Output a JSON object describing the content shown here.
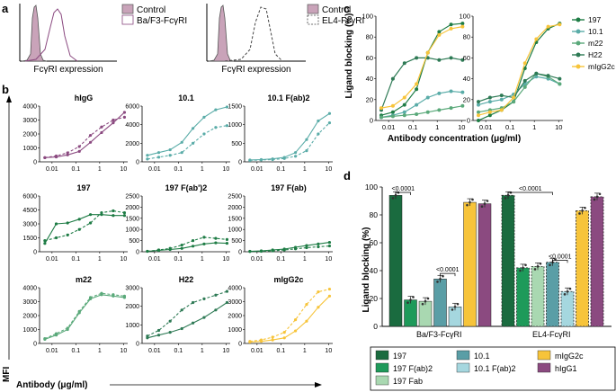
{
  "colors": {
    "hIgG": "#8b4a80",
    "c101": "#5aaca8",
    "c197": "#1e7c45",
    "m22": "#5aa97a",
    "H22": "#2e7a55",
    "mIgG2c": "#f7c43a",
    "control_fill": "#c9a3b9",
    "d_197": "#1a6b3f",
    "d_197_fab2": "#1e9a5a",
    "d_197_fab": "#a9d8b1",
    "d_101": "#5a9ea6",
    "d_101_fab2": "#a5d7df",
    "d_mIgG2c": "#f7c43a",
    "d_hIgG1": "#8b4a80"
  },
  "panel_a": {
    "label": "a",
    "left": {
      "legend": [
        "Control",
        "Ba/F3-FcγRI"
      ],
      "xlabel": "FcγRI expression"
    },
    "right": {
      "legend": [
        "Control",
        "EL4-FcγRI"
      ],
      "xlabel": "FcγRI expression"
    }
  },
  "panel_b": {
    "label": "b",
    "ylabel": "MFI",
    "xlabel": "Antibody (μg/ml)",
    "yticks_top": [
      "0",
      "1000",
      "2000",
      "3000",
      "4000"
    ],
    "xticks": [
      "0.01",
      "0.1",
      "1",
      "10"
    ],
    "x": [
      0.005,
      0.015,
      0.045,
      0.14,
      0.41,
      1.2,
      3.7,
      11
    ],
    "chart_data": [
      {
        "type": "line",
        "title": "hIgG",
        "color_key": "hIgG",
        "ymax": 4000,
        "yticks": [
          "0",
          "1000",
          "2000",
          "3000",
          "4000"
        ],
        "series": [
          {
            "name": "Ba/F3-FcγRI",
            "style": "solid",
            "values": [
              300,
              350,
              500,
              750,
              1400,
              2100,
              2800,
              3550
            ]
          },
          {
            "name": "EL4-FcγRI",
            "style": "dashed",
            "values": [
              300,
              420,
              650,
              1100,
              1900,
              2500,
              3000,
              3200
            ]
          }
        ]
      },
      {
        "type": "line",
        "title": "10.1",
        "color_key": "c101",
        "ymax": 6000,
        "yticks": [
          "0",
          "2000",
          "4000",
          "6000"
        ],
        "series": [
          {
            "name": "Ba/F3-FcγRI",
            "style": "solid",
            "values": [
              700,
              1000,
              1300,
              2100,
              3600,
              4800,
              5600,
              5900
            ]
          },
          {
            "name": "EL4-FcγRI",
            "style": "dashed",
            "values": [
              300,
              500,
              700,
              1000,
              2000,
              3000,
              3700,
              3900
            ]
          }
        ]
      },
      {
        "type": "line",
        "title": "10.1 F(ab)2",
        "color_key": "c101",
        "ymax": 1500,
        "yticks": [
          "0",
          "500",
          "1000",
          "1500"
        ],
        "series": [
          {
            "name": "Ba/F3-FcγRI",
            "style": "solid",
            "values": [
              50,
              60,
              80,
              120,
              250,
              600,
              1100,
              1300
            ]
          },
          {
            "name": "EL4-FcγRI",
            "style": "dashed",
            "values": [
              40,
              50,
              60,
              90,
              150,
              300,
              750,
              1050
            ]
          }
        ]
      },
      {
        "type": "line",
        "title": "197",
        "color_key": "c197",
        "ymax": 6000,
        "yticks": [
          "0",
          "1500",
          "3000",
          "4500",
          "6000"
        ],
        "series": [
          {
            "name": "Ba/F3-FcγRI",
            "style": "solid",
            "values": [
              900,
              3000,
              3100,
              3500,
              4000,
              4000,
              3900,
              3900
            ]
          },
          {
            "name": "EL4-FcγRI",
            "style": "dashed",
            "values": [
              1200,
              1500,
              1800,
              2400,
              3100,
              4200,
              4400,
              4200
            ]
          }
        ]
      },
      {
        "type": "line",
        "title": "197 F(ab')2",
        "color_key": "c197",
        "ymax": 2500,
        "yticks": [
          "0",
          "500",
          "1000",
          "1500",
          "2000",
          "2500"
        ],
        "series": [
          {
            "name": "Ba/F3-FcγRI",
            "style": "solid",
            "values": [
              20,
              60,
              100,
              150,
              250,
              350,
              400,
              380
            ]
          },
          {
            "name": "EL4-FcγRI",
            "style": "dashed",
            "values": [
              20,
              80,
              150,
              300,
              500,
              650,
              600,
              550
            ]
          }
        ]
      },
      {
        "type": "line",
        "title": "197 F(ab)",
        "color_key": "c197",
        "ymax": 2500,
        "yticks": [
          "0",
          "500",
          "1000",
          "1500",
          "2000",
          "2500"
        ],
        "series": [
          {
            "name": "Ba/F3-FcγRI",
            "style": "solid",
            "values": [
              20,
              40,
              80,
              120,
              200,
              280,
              350,
              420
            ]
          },
          {
            "name": "EL4-FcγRI",
            "style": "dashed",
            "values": [
              10,
              20,
              40,
              80,
              130,
              180,
              220,
              260
            ]
          }
        ]
      },
      {
        "type": "line",
        "title": "m22",
        "color_key": "m22",
        "ymax": 4000,
        "yticks": [
          "0",
          "1000",
          "2000",
          "3000",
          "4000"
        ],
        "series": [
          {
            "name": "Ba/F3-FcγRI",
            "style": "solid",
            "values": [
              300,
              600,
              1000,
              2200,
              3200,
              3500,
              3400,
              3300
            ]
          },
          {
            "name": "EL4-FcγRI",
            "style": "dashed",
            "values": [
              350,
              700,
              1100,
              2300,
              3300,
              3600,
              3500,
              3400
            ]
          }
        ]
      },
      {
        "type": "line",
        "title": "H22",
        "color_key": "H22",
        "ymax": 3000,
        "yticks": [
          "0",
          "1000",
          "2000",
          "3000"
        ],
        "series": [
          {
            "name": "Ba/F3-FcγRI",
            "style": "solid",
            "values": [
              300,
              450,
              600,
              800,
              1100,
              1400,
              1800,
              2200
            ]
          },
          {
            "name": "EL4-FcγRI",
            "style": "dashed",
            "values": [
              400,
              700,
              1200,
              1800,
              2200,
              2400,
              2600,
              2800
            ]
          }
        ]
      },
      {
        "type": "line",
        "title": "mIgG2c",
        "color_key": "mIgG2c",
        "ymax": 4000,
        "yticks": [
          "0",
          "1000",
          "2000",
          "3000",
          "4000"
        ],
        "series": [
          {
            "name": "Ba/F3-FcγRI",
            "style": "solid",
            "values": [
              100,
              150,
              250,
              400,
              900,
              1600,
              2600,
              3400
            ]
          },
          {
            "name": "EL4-FcγRI",
            "style": "dashed",
            "values": [
              150,
              250,
              450,
              800,
              1700,
              2800,
              3700,
              3900
            ]
          }
        ]
      }
    ]
  },
  "panel_c": {
    "label": "c",
    "ylabel": "Ligand blocking (%)",
    "xlabel": "Antibody concentration (μg/ml)",
    "yticks": [
      "0",
      "20",
      "40",
      "60",
      "80",
      "100"
    ],
    "xticks": [
      "0.01",
      "0.1",
      "1",
      "10"
    ],
    "legend": [
      "197",
      "10.1",
      "m22",
      "H22",
      "mIgG2c"
    ],
    "chart_data": [
      {
        "type": "line",
        "title": "",
        "x": [
          0.005,
          0.015,
          0.045,
          0.14,
          0.41,
          1.2,
          3.7,
          11
        ],
        "series": [
          {
            "name": "197",
            "color_key": "c197",
            "values": [
              5,
              8,
              15,
              30,
              65,
              85,
              92,
              93
            ]
          },
          {
            "name": "10.1",
            "color_key": "c101",
            "values": [
              3,
              5,
              8,
              15,
              22,
              26,
              28,
              27
            ]
          },
          {
            "name": "m22",
            "color_key": "m22",
            "values": [
              3,
              4,
              5,
              6,
              8,
              10,
              12,
              14
            ]
          },
          {
            "name": "H22",
            "color_key": "H22",
            "values": [
              10,
              40,
              55,
              60,
              60,
              58,
              60,
              58
            ]
          },
          {
            "name": "mIgG2c",
            "color_key": "mIgG2c",
            "values": [
              12,
              14,
              22,
              35,
              65,
              82,
              88,
              90
            ]
          }
        ]
      },
      {
        "type": "line",
        "title": "",
        "x": [
          0.005,
          0.015,
          0.045,
          0.14,
          0.41,
          1.2,
          3.7,
          11
        ],
        "series": [
          {
            "name": "197",
            "color_key": "c197",
            "values": [
              0,
              5,
              10,
              18,
              50,
              75,
              88,
              93
            ]
          },
          {
            "name": "10.1",
            "color_key": "c101",
            "values": [
              15,
              18,
              20,
              25,
              35,
              42,
              40,
              35
            ]
          },
          {
            "name": "m22",
            "color_key": "m22",
            "values": [
              8,
              10,
              12,
              18,
              32,
              45,
              42,
              35
            ]
          },
          {
            "name": "H22",
            "color_key": "H22",
            "values": [
              18,
              22,
              24,
              22,
              38,
              45,
              43,
              40
            ]
          },
          {
            "name": "mIgG2c",
            "color_key": "mIgG2c",
            "values": [
              5,
              8,
              10,
              22,
              55,
              78,
              90,
              92
            ]
          }
        ]
      }
    ]
  },
  "panel_d": {
    "label": "d",
    "ylabel": "Ligand blocking (%)",
    "yticks": [
      "0",
      "20",
      "40",
      "60",
      "80",
      "100"
    ],
    "chart_data": {
      "type": "bar",
      "categories": [
        "Ba/F3-FcγRI",
        "EL4-FcγRI"
      ],
      "series": [
        {
          "name": "197",
          "color_key": "d_197",
          "values": [
            94,
            94
          ]
        },
        {
          "name": "197 F(ab)2",
          "color_key": "d_197_fab2",
          "values": [
            19,
            42
          ]
        },
        {
          "name": "197 Fab",
          "color_key": "d_197_fab",
          "values": [
            18,
            43
          ]
        },
        {
          "name": "10.1",
          "color_key": "d_101",
          "values": [
            34,
            46
          ]
        },
        {
          "name": "10.1 F(ab)2",
          "color_key": "d_101_fab2",
          "values": [
            14,
            25
          ]
        },
        {
          "name": "mIgG2c",
          "color_key": "d_mIgG2c",
          "values": [
            89,
            83
          ]
        },
        {
          "name": "hIgG1",
          "color_key": "d_hIgG1",
          "values": [
            88,
            93
          ]
        }
      ],
      "annotations": [
        "<0.0001",
        "<0.0001",
        "<0.0001",
        "<0.0001"
      ]
    },
    "legend": [
      "197",
      "10.1",
      "mIgG2c",
      "197 F(ab)2",
      "10.1 F(ab)2",
      "hIgG1",
      "197 Fab"
    ]
  }
}
